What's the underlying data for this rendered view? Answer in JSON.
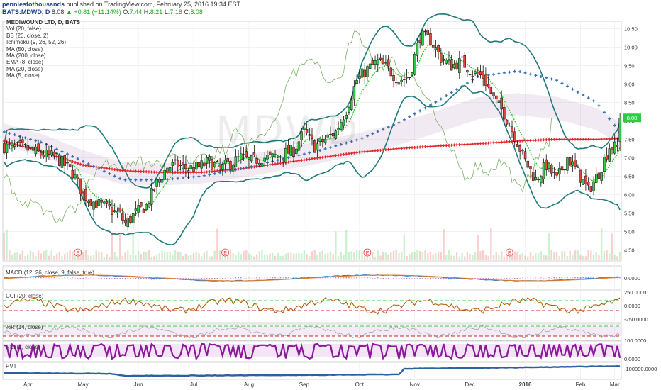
{
  "header": {
    "author": "penniestothousands",
    "published": "published on TradingView.com, February 25, 2016 19:34 EST",
    "symbol": "BATS:MDWD, D",
    "last": "8.08",
    "change": "+0.81 (+11.14%)",
    "open_label": "O:",
    "open": "7.44",
    "high_label": "H:",
    "high": "8.21",
    "low_label": "L:",
    "low": "7.18",
    "close_label": "C:",
    "close": "8.08",
    "up_color": "#23a423"
  },
  "indicators": {
    "title": "MEDIWOUND LTD, D, BATS",
    "list": [
      "Vol (20, false)",
      "BB (20, close, 2)",
      "Ichimoku (9, 26, 52, 26)",
      "MA (50, close)",
      "MA (200, close)",
      "EMA (8, close)",
      "MA (20, close)",
      "MA (5, close)"
    ]
  },
  "watermark": "MDWD",
  "panes": {
    "macd": "MACD (12, 26, close, 9, false, true)",
    "cci": "CCI (20, close)",
    "wr": "%R (14, close)",
    "rsi": "RSI (2, close)",
    "pvt": "PVT"
  },
  "chart_data": {
    "type": "candlestick",
    "x_tick_labels": [
      "Apr",
      "May",
      "Jun",
      "Jul",
      "Aug",
      "Sep",
      "Oct",
      "Nov",
      "Dec",
      "2016",
      "Feb",
      "Mar"
    ],
    "price_axis": {
      "ylim": [
        4.2,
        10.7
      ],
      "ticks": [
        "10.50",
        "10.00",
        "9.50",
        "9.00",
        "8.50",
        "8.00",
        "7.50",
        "7.00",
        "6.50",
        "6.00",
        "5.50",
        "5.00",
        "4.50"
      ]
    },
    "last_price_label": "8.08",
    "price_path": [
      [
        0,
        7.3
      ],
      [
        8,
        7.25
      ],
      [
        14,
        7.1
      ],
      [
        20,
        7.0
      ],
      [
        26,
        6.6
      ],
      [
        30,
        6.0
      ],
      [
        34,
        5.8
      ],
      [
        40,
        5.6
      ],
      [
        44,
        5.45
      ],
      [
        46,
        5.2
      ],
      [
        50,
        5.5
      ],
      [
        54,
        5.7
      ],
      [
        58,
        6.3
      ],
      [
        62,
        6.75
      ],
      [
        66,
        6.8
      ],
      [
        70,
        6.7
      ],
      [
        74,
        6.75
      ],
      [
        78,
        6.9
      ],
      [
        82,
        6.7
      ],
      [
        86,
        6.85
      ],
      [
        90,
        7.0
      ],
      [
        94,
        6.9
      ],
      [
        98,
        7.0
      ],
      [
        102,
        7.0
      ],
      [
        106,
        7.1
      ],
      [
        110,
        7.2
      ],
      [
        114,
        7.7
      ],
      [
        118,
        7.3
      ],
      [
        122,
        7.5
      ],
      [
        126,
        7.7
      ],
      [
        130,
        8.3
      ],
      [
        134,
        9.1
      ],
      [
        138,
        9.4
      ],
      [
        142,
        9.6
      ],
      [
        146,
        9.4
      ],
      [
        150,
        9.1
      ],
      [
        154,
        9.2
      ],
      [
        158,
        10.3
      ],
      [
        162,
        10.2
      ],
      [
        166,
        9.7
      ],
      [
        170,
        9.5
      ],
      [
        174,
        9.6
      ],
      [
        178,
        9.3
      ],
      [
        182,
        9.2
      ],
      [
        186,
        8.6
      ],
      [
        190,
        8.2
      ],
      [
        194,
        7.6
      ],
      [
        198,
        6.9
      ],
      [
        202,
        6.4
      ],
      [
        206,
        6.8
      ],
      [
        210,
        6.4
      ],
      [
        214,
        7.0
      ],
      [
        218,
        6.6
      ],
      [
        222,
        6.1
      ],
      [
        226,
        6.6
      ],
      [
        230,
        7.3
      ],
      [
        233,
        7.27
      ],
      [
        234,
        8.08
      ]
    ],
    "ma200_path": [
      [
        0,
        7.45
      ],
      [
        15,
        7.15
      ],
      [
        30,
        6.8
      ],
      [
        45,
        6.65
      ],
      [
        60,
        6.6
      ],
      [
        75,
        6.6
      ],
      [
        90,
        6.7
      ],
      [
        105,
        6.85
      ],
      [
        120,
        7.0
      ],
      [
        135,
        7.15
      ],
      [
        150,
        7.25
      ],
      [
        165,
        7.32
      ],
      [
        180,
        7.38
      ],
      [
        195,
        7.45
      ],
      [
        210,
        7.5
      ],
      [
        225,
        7.5
      ],
      [
        234,
        7.52
      ]
    ],
    "ma50_path": [
      [
        0,
        7.7
      ],
      [
        15,
        7.4
      ],
      [
        30,
        6.9
      ],
      [
        45,
        6.4
      ],
      [
        60,
        6.4
      ],
      [
        75,
        6.5
      ],
      [
        90,
        6.7
      ],
      [
        105,
        6.95
      ],
      [
        120,
        7.2
      ],
      [
        135,
        7.5
      ],
      [
        150,
        7.95
      ],
      [
        165,
        8.55
      ],
      [
        180,
        9.2
      ],
      [
        195,
        9.35
      ],
      [
        210,
        9.1
      ],
      [
        225,
        8.5
      ],
      [
        234,
        7.7
      ]
    ],
    "xticks_on_bars": [
      9,
      30,
      51,
      72,
      93,
      114,
      135,
      156,
      177,
      198,
      219,
      232
    ],
    "macd_ticks": [
      "0.0000"
    ],
    "cci_ticks": [
      "250.0000",
      "0.0000",
      "-250.0000"
    ],
    "rsi_ticks": [
      "100.0000",
      "0.0000"
    ],
    "pvt_ticks": [
      "-100000.0000"
    ],
    "earnings_markers": [
      "E",
      "E",
      "E",
      "E"
    ]
  },
  "colors": {
    "up": "#2ecc40",
    "down": "#e0483c",
    "bb": "#1f7a7a",
    "ma200": "#e0282a",
    "ma50": "#3a6fb0",
    "cloud": "#9a5aa0",
    "macd": "#2a7fd1",
    "signal": "#e07a22",
    "cci": "#b0620f",
    "rsi": "#8a1a9a",
    "pvt": "#2e5f9e"
  }
}
